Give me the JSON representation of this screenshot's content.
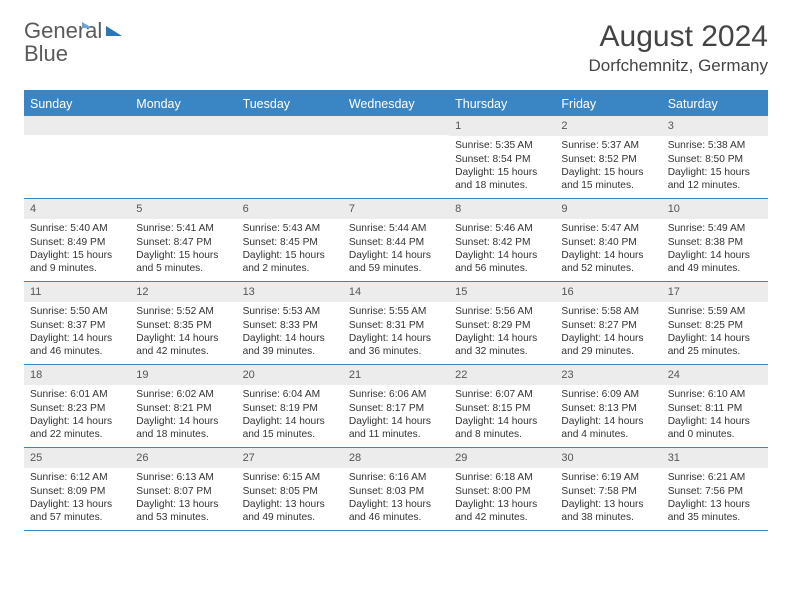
{
  "logo": {
    "text1": "General",
    "text2": "Blue"
  },
  "title": "August 2024",
  "location": "Dorfchemnitz, Germany",
  "colors": {
    "header_bg": "#3a85c4",
    "header_text": "#ffffff",
    "daynum_bg": "#ececec",
    "border": "#3a85c4",
    "text": "#333333",
    "title_text": "#444444"
  },
  "day_names": [
    "Sunday",
    "Monday",
    "Tuesday",
    "Wednesday",
    "Thursday",
    "Friday",
    "Saturday"
  ],
  "layout": {
    "columns": 7,
    "first_day_column_index": 4,
    "days_in_month": 31
  },
  "weeks": [
    [
      null,
      null,
      null,
      null,
      {
        "n": "1",
        "sunrise": "Sunrise: 5:35 AM",
        "sunset": "Sunset: 8:54 PM",
        "dl1": "Daylight: 15 hours",
        "dl2": "and 18 minutes."
      },
      {
        "n": "2",
        "sunrise": "Sunrise: 5:37 AM",
        "sunset": "Sunset: 8:52 PM",
        "dl1": "Daylight: 15 hours",
        "dl2": "and 15 minutes."
      },
      {
        "n": "3",
        "sunrise": "Sunrise: 5:38 AM",
        "sunset": "Sunset: 8:50 PM",
        "dl1": "Daylight: 15 hours",
        "dl2": "and 12 minutes."
      }
    ],
    [
      {
        "n": "4",
        "sunrise": "Sunrise: 5:40 AM",
        "sunset": "Sunset: 8:49 PM",
        "dl1": "Daylight: 15 hours",
        "dl2": "and 9 minutes."
      },
      {
        "n": "5",
        "sunrise": "Sunrise: 5:41 AM",
        "sunset": "Sunset: 8:47 PM",
        "dl1": "Daylight: 15 hours",
        "dl2": "and 5 minutes."
      },
      {
        "n": "6",
        "sunrise": "Sunrise: 5:43 AM",
        "sunset": "Sunset: 8:45 PM",
        "dl1": "Daylight: 15 hours",
        "dl2": "and 2 minutes."
      },
      {
        "n": "7",
        "sunrise": "Sunrise: 5:44 AM",
        "sunset": "Sunset: 8:44 PM",
        "dl1": "Daylight: 14 hours",
        "dl2": "and 59 minutes."
      },
      {
        "n": "8",
        "sunrise": "Sunrise: 5:46 AM",
        "sunset": "Sunset: 8:42 PM",
        "dl1": "Daylight: 14 hours",
        "dl2": "and 56 minutes."
      },
      {
        "n": "9",
        "sunrise": "Sunrise: 5:47 AM",
        "sunset": "Sunset: 8:40 PM",
        "dl1": "Daylight: 14 hours",
        "dl2": "and 52 minutes."
      },
      {
        "n": "10",
        "sunrise": "Sunrise: 5:49 AM",
        "sunset": "Sunset: 8:38 PM",
        "dl1": "Daylight: 14 hours",
        "dl2": "and 49 minutes."
      }
    ],
    [
      {
        "n": "11",
        "sunrise": "Sunrise: 5:50 AM",
        "sunset": "Sunset: 8:37 PM",
        "dl1": "Daylight: 14 hours",
        "dl2": "and 46 minutes."
      },
      {
        "n": "12",
        "sunrise": "Sunrise: 5:52 AM",
        "sunset": "Sunset: 8:35 PM",
        "dl1": "Daylight: 14 hours",
        "dl2": "and 42 minutes."
      },
      {
        "n": "13",
        "sunrise": "Sunrise: 5:53 AM",
        "sunset": "Sunset: 8:33 PM",
        "dl1": "Daylight: 14 hours",
        "dl2": "and 39 minutes."
      },
      {
        "n": "14",
        "sunrise": "Sunrise: 5:55 AM",
        "sunset": "Sunset: 8:31 PM",
        "dl1": "Daylight: 14 hours",
        "dl2": "and 36 minutes."
      },
      {
        "n": "15",
        "sunrise": "Sunrise: 5:56 AM",
        "sunset": "Sunset: 8:29 PM",
        "dl1": "Daylight: 14 hours",
        "dl2": "and 32 minutes."
      },
      {
        "n": "16",
        "sunrise": "Sunrise: 5:58 AM",
        "sunset": "Sunset: 8:27 PM",
        "dl1": "Daylight: 14 hours",
        "dl2": "and 29 minutes."
      },
      {
        "n": "17",
        "sunrise": "Sunrise: 5:59 AM",
        "sunset": "Sunset: 8:25 PM",
        "dl1": "Daylight: 14 hours",
        "dl2": "and 25 minutes."
      }
    ],
    [
      {
        "n": "18",
        "sunrise": "Sunrise: 6:01 AM",
        "sunset": "Sunset: 8:23 PM",
        "dl1": "Daylight: 14 hours",
        "dl2": "and 22 minutes."
      },
      {
        "n": "19",
        "sunrise": "Sunrise: 6:02 AM",
        "sunset": "Sunset: 8:21 PM",
        "dl1": "Daylight: 14 hours",
        "dl2": "and 18 minutes."
      },
      {
        "n": "20",
        "sunrise": "Sunrise: 6:04 AM",
        "sunset": "Sunset: 8:19 PM",
        "dl1": "Daylight: 14 hours",
        "dl2": "and 15 minutes."
      },
      {
        "n": "21",
        "sunrise": "Sunrise: 6:06 AM",
        "sunset": "Sunset: 8:17 PM",
        "dl1": "Daylight: 14 hours",
        "dl2": "and 11 minutes."
      },
      {
        "n": "22",
        "sunrise": "Sunrise: 6:07 AM",
        "sunset": "Sunset: 8:15 PM",
        "dl1": "Daylight: 14 hours",
        "dl2": "and 8 minutes."
      },
      {
        "n": "23",
        "sunrise": "Sunrise: 6:09 AM",
        "sunset": "Sunset: 8:13 PM",
        "dl1": "Daylight: 14 hours",
        "dl2": "and 4 minutes."
      },
      {
        "n": "24",
        "sunrise": "Sunrise: 6:10 AM",
        "sunset": "Sunset: 8:11 PM",
        "dl1": "Daylight: 14 hours",
        "dl2": "and 0 minutes."
      }
    ],
    [
      {
        "n": "25",
        "sunrise": "Sunrise: 6:12 AM",
        "sunset": "Sunset: 8:09 PM",
        "dl1": "Daylight: 13 hours",
        "dl2": "and 57 minutes."
      },
      {
        "n": "26",
        "sunrise": "Sunrise: 6:13 AM",
        "sunset": "Sunset: 8:07 PM",
        "dl1": "Daylight: 13 hours",
        "dl2": "and 53 minutes."
      },
      {
        "n": "27",
        "sunrise": "Sunrise: 6:15 AM",
        "sunset": "Sunset: 8:05 PM",
        "dl1": "Daylight: 13 hours",
        "dl2": "and 49 minutes."
      },
      {
        "n": "28",
        "sunrise": "Sunrise: 6:16 AM",
        "sunset": "Sunset: 8:03 PM",
        "dl1": "Daylight: 13 hours",
        "dl2": "and 46 minutes."
      },
      {
        "n": "29",
        "sunrise": "Sunrise: 6:18 AM",
        "sunset": "Sunset: 8:00 PM",
        "dl1": "Daylight: 13 hours",
        "dl2": "and 42 minutes."
      },
      {
        "n": "30",
        "sunrise": "Sunrise: 6:19 AM",
        "sunset": "Sunset: 7:58 PM",
        "dl1": "Daylight: 13 hours",
        "dl2": "and 38 minutes."
      },
      {
        "n": "31",
        "sunrise": "Sunrise: 6:21 AM",
        "sunset": "Sunset: 7:56 PM",
        "dl1": "Daylight: 13 hours",
        "dl2": "and 35 minutes."
      }
    ]
  ]
}
